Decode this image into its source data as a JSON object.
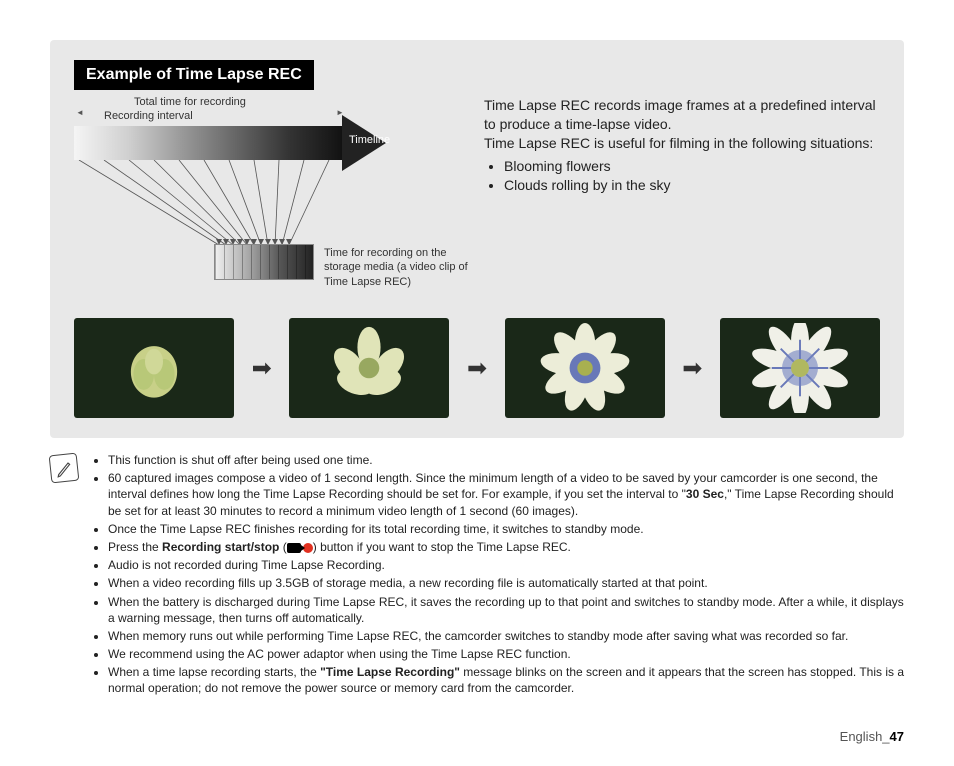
{
  "panel": {
    "header": "Example of Time Lapse REC",
    "label_total": "Total time for recording",
    "label_interval": "Recording interval",
    "timeline_label": "Timeline",
    "clip_label": "Time for recording on the storage media (a video clip of Time Lapse REC)",
    "intro_p1": "Time Lapse REC records image frames at a predefined interval to produce a time-lapse video.",
    "intro_p2": "Time Lapse REC is useful for filming in the following situations:",
    "intro_bullets": [
      "Blooming flowers",
      "Clouds rolling by in the sky"
    ]
  },
  "flowers": {
    "bg": "#203018",
    "petal1": "#d8e0a8",
    "petal2": "#e8e8d0",
    "center": "#8aa050",
    "blue": "#6878b8"
  },
  "notes": [
    "This function is shut off after being used one time.",
    "60 captured images compose a video of 1 second length. Since the minimum length of a video to be saved by your camcorder is one second, the interval defines how long the Time Lapse Recording should be set for. For example, if you set the interval to \"30 Sec,\" Time Lapse Recording should be set for at least 30 minutes to record a minimum video length of 1 second (60 images).",
    "Once the Time Lapse REC finishes recording for its total recording time, it switches to standby mode.",
    "Press the Recording start/stop (ICON) button if you want to stop the Time Lapse REC.",
    "Audio is not recorded during Time Lapse Recording.",
    "When a video recording fills up 3.5GB of storage media, a new recording file is automatically started at that point.",
    "When the battery is discharged during Time Lapse REC, it saves the recording up to that point and switches to standby mode. After a while, it displays a warning message, then turns off automatically.",
    "When memory runs out while performing Time Lapse REC, the camcorder switches to standby mode after saving what was recorded so far.",
    "We recommend using the AC power adaptor when using the Time Lapse REC function.",
    "When a time lapse recording starts, the \"Time Lapse Recording\" message blinks on the screen and it appears that the screen has stopped. This is a normal operation; do not remove the power source or memory card from the camcorder."
  ],
  "bold": {
    "sec30": "30 Sec",
    "rec_start_stop": "Recording start/stop",
    "tlr_msg": "\"Time Lapse Recording\""
  },
  "footer": {
    "lang": "English",
    "sep": "_",
    "page": "47"
  }
}
